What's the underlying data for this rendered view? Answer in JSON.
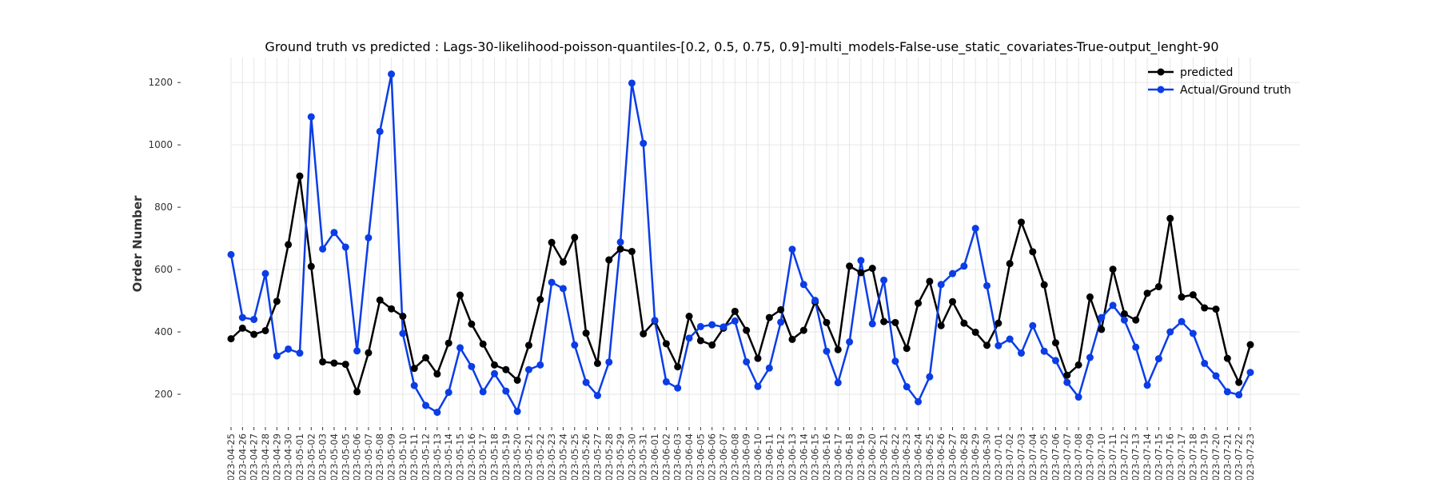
{
  "chart_data": {
    "type": "line",
    "title": "Ground truth vs predicted : Lags-30-likelihood-poisson-quantiles-[0.2, 0.5, 0.75, 0.9]-multi_models-False-use_static_covariates-True-output_lenght-90",
    "xlabel": "",
    "ylabel": "Order Number",
    "ylim": [
      100,
      1280
    ],
    "yticks": [
      200,
      400,
      600,
      800,
      1000,
      1200
    ],
    "grid": true,
    "legend_position": "top-right",
    "x": [
      "2023-04-25",
      "2023-04-26",
      "2023-04-27",
      "2023-04-28",
      "2023-04-29",
      "2023-04-30",
      "2023-05-01",
      "2023-05-02",
      "2023-05-03",
      "2023-05-04",
      "2023-05-05",
      "2023-05-06",
      "2023-05-07",
      "2023-05-08",
      "2023-05-09",
      "2023-05-10",
      "2023-05-11",
      "2023-05-12",
      "2023-05-13",
      "2023-05-14",
      "2023-05-15",
      "2023-05-16",
      "2023-05-17",
      "2023-05-18",
      "2023-05-19",
      "2023-05-20",
      "2023-05-21",
      "2023-05-22",
      "2023-05-23",
      "2023-05-24",
      "2023-05-25",
      "2023-05-26",
      "2023-05-27",
      "2023-05-28",
      "2023-05-29",
      "2023-05-30",
      "2023-05-31",
      "2023-06-01",
      "2023-06-02",
      "2023-06-03",
      "2023-06-04",
      "2023-06-05",
      "2023-06-06",
      "2023-06-07",
      "2023-06-08",
      "2023-06-09",
      "2023-06-10",
      "2023-06-11",
      "2023-06-12",
      "2023-06-13",
      "2023-06-14",
      "2023-06-15",
      "2023-06-16",
      "2023-06-17",
      "2023-06-18",
      "2023-06-19",
      "2023-06-20",
      "2023-06-21",
      "2023-06-22",
      "2023-06-23",
      "2023-06-24",
      "2023-06-25",
      "2023-06-26",
      "2023-06-27",
      "2023-06-28",
      "2023-06-29",
      "2023-06-30",
      "2023-07-01",
      "2023-07-02",
      "2023-07-03",
      "2023-07-04",
      "2023-07-05",
      "2023-07-06",
      "2023-07-07",
      "2023-07-08",
      "2023-07-09",
      "2023-07-10",
      "2023-07-11",
      "2023-07-12",
      "2023-07-13",
      "2023-07-14",
      "2023-07-15",
      "2023-07-16",
      "2023-07-17",
      "2023-07-18",
      "2023-07-19",
      "2023-07-20",
      "2023-07-21",
      "2023-07-22",
      "2023-07-23"
    ],
    "x_tick_labels": [
      "023-04-25",
      "023-04-26",
      "023-04-27",
      "023-04-28",
      "023-04-29",
      "023-04-30",
      "023-05-01",
      "023-05-02",
      "023-05-03",
      "023-05-04",
      "023-05-05",
      "023-05-06",
      "023-05-07",
      "023-05-08",
      "023-05-09",
      "023-05-10",
      "023-05-11",
      "023-05-12",
      "023-05-13",
      "023-05-14",
      "023-05-15",
      "023-05-16",
      "023-05-17",
      "023-05-18",
      "023-05-19",
      "023-05-20",
      "023-05-21",
      "023-05-22",
      "023-05-23",
      "023-05-24",
      "023-05-25",
      "023-05-26",
      "023-05-27",
      "023-05-28",
      "023-05-29",
      "023-05-30",
      "023-05-31",
      "023-06-01",
      "023-06-02",
      "023-06-03",
      "023-06-04",
      "023-06-05",
      "023-06-06",
      "023-06-07",
      "023-06-08",
      "023-06-09",
      "023-06-10",
      "023-06-11",
      "023-06-12",
      "023-06-13",
      "023-06-14",
      "023-06-15",
      "023-06-16",
      "023-06-17",
      "023-06-18",
      "023-06-19",
      "023-06-20",
      "023-06-21",
      "023-06-22",
      "023-06-23",
      "023-06-24",
      "023-06-25",
      "023-06-26",
      "023-06-27",
      "023-06-28",
      "023-06-29",
      "023-06-30",
      "023-07-01",
      "023-07-02",
      "023-07-03",
      "023-07-04",
      "023-07-05",
      "023-07-06",
      "023-07-07",
      "023-07-08",
      "023-07-09",
      "023-07-10",
      "023-07-11",
      "023-07-12",
      "023-07-13",
      "023-07-14",
      "023-07-15",
      "023-07-16",
      "023-07-17",
      "023-07-18",
      "023-07-19",
      "023-07-20",
      "023-07-21",
      "023-07-22",
      "023-07-23"
    ],
    "series": [
      {
        "name": "predicted",
        "color": "#000000",
        "values": [
          378,
          412,
          392,
          404,
          498,
          680,
          900,
          610,
          304,
          300,
          296,
          208,
          333,
          502,
          474,
          450,
          283,
          317,
          265,
          364,
          518,
          425,
          361,
          294,
          279,
          245,
          357,
          504,
          687,
          624,
          703,
          396,
          299,
          631,
          666,
          658,
          394,
          435,
          362,
          288,
          450,
          372,
          358,
          412,
          466,
          405,
          315,
          446,
          471,
          376,
          405,
          496,
          430,
          343,
          611,
          590,
          604,
          433,
          430,
          347,
          492,
          562,
          420,
          497,
          428,
          399,
          357,
          428,
          619,
          752,
          657,
          551,
          365,
          261,
          294,
          512,
          408,
          601,
          458,
          438,
          524,
          545,
          764,
          512,
          519,
          477,
          473,
          315,
          238,
          359
        ]
      },
      {
        "name": "Actual/Ground truth",
        "color": "#0b3de6",
        "values": [
          648,
          446,
          440,
          587,
          323,
          345,
          332,
          1090,
          666,
          719,
          672,
          339,
          702,
          1043,
          1227,
          395,
          228,
          164,
          142,
          206,
          349,
          289,
          208,
          266,
          210,
          145,
          279,
          294,
          559,
          539,
          358,
          238,
          196,
          303,
          688,
          1198,
          1005,
          437,
          240,
          220,
          380,
          417,
          423,
          416,
          435,
          304,
          225,
          284,
          431,
          665,
          552,
          501,
          338,
          237,
          368,
          629,
          426,
          566,
          306,
          224,
          176,
          256,
          552,
          587,
          611,
          732,
          548,
          356,
          377,
          332,
          420,
          338,
          308,
          238,
          191,
          318,
          446,
          485,
          438,
          351,
          229,
          314,
          400,
          433,
          395,
          299,
          259,
          208,
          198,
          270
        ]
      }
    ]
  }
}
